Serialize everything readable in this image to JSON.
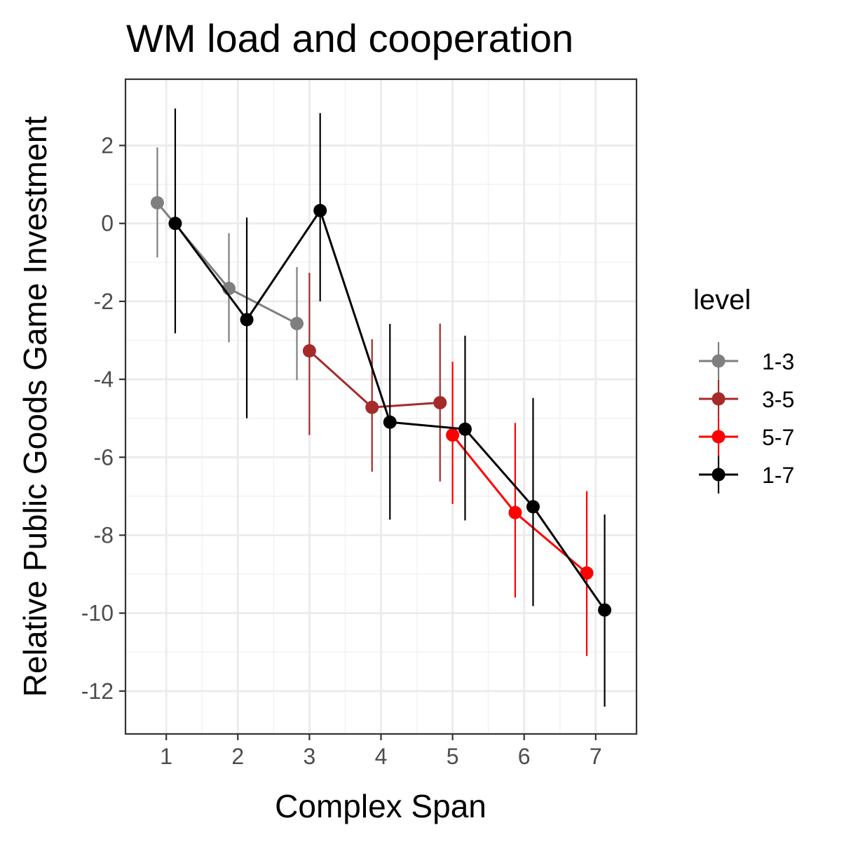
{
  "chart_data": {
    "type": "line",
    "title": "WM load and cooperation",
    "xlabel": "Complex Span",
    "ylabel": "Relative Public Goods Game Investment",
    "xlim": [
      0.43,
      7.57
    ],
    "ylim": [
      -13.1,
      3.7
    ],
    "x_ticks": [
      1,
      2,
      3,
      4,
      5,
      6,
      7
    ],
    "x_tick_labels": [
      "1",
      "2",
      "3",
      "4",
      "5",
      "6",
      "7"
    ],
    "y_ticks": [
      -12,
      -10,
      -8,
      -6,
      -4,
      -2,
      0,
      2
    ],
    "y_tick_labels": [
      "-12",
      "-10",
      "-8",
      "-6",
      "-4",
      "-2",
      "0",
      "2"
    ],
    "grid": true,
    "legend_title": "level",
    "legend_position": "right",
    "series": [
      {
        "name": "1-3",
        "color": "#7f7f7f",
        "points": [
          {
            "x": 0.875,
            "y": 0.53,
            "lower": -0.87,
            "upper": 1.95
          },
          {
            "x": 1.875,
            "y": -1.67,
            "lower": -3.05,
            "upper": -0.25
          },
          {
            "x": 2.825,
            "y": -2.57,
            "lower": -4.02,
            "upper": -1.12
          }
        ]
      },
      {
        "name": "3-5",
        "color": "#a52a2a",
        "points": [
          {
            "x": 3.0,
            "y": -3.27,
            "lower": -5.43,
            "upper": -1.27
          },
          {
            "x": 3.875,
            "y": -4.72,
            "lower": -6.37,
            "upper": -2.97
          },
          {
            "x": 4.825,
            "y": -4.6,
            "lower": -6.62,
            "upper": -2.57
          }
        ]
      },
      {
        "name": "5-7",
        "color": "#ff0000",
        "points": [
          {
            "x": 5.0,
            "y": -5.43,
            "lower": -7.2,
            "upper": -3.55
          },
          {
            "x": 5.875,
            "y": -7.42,
            "lower": -9.6,
            "upper": -5.12
          },
          {
            "x": 6.875,
            "y": -8.97,
            "lower": -11.1,
            "upper": -6.87
          }
        ]
      },
      {
        "name": "1-7",
        "color": "#000000",
        "points": [
          {
            "x": 1.125,
            "y": 0.0,
            "lower": -2.82,
            "upper": 2.95
          },
          {
            "x": 2.125,
            "y": -2.47,
            "lower": -5.0,
            "upper": 0.15
          },
          {
            "x": 3.15,
            "y": 0.33,
            "lower": -2.0,
            "upper": 2.83
          },
          {
            "x": 4.125,
            "y": -5.1,
            "lower": -7.6,
            "upper": -2.58
          },
          {
            "x": 5.175,
            "y": -5.28,
            "lower": -7.62,
            "upper": -2.88
          },
          {
            "x": 6.125,
            "y": -7.27,
            "lower": -9.82,
            "upper": -4.48
          },
          {
            "x": 7.125,
            "y": -9.92,
            "lower": -12.4,
            "upper": -7.47
          }
        ]
      }
    ]
  }
}
